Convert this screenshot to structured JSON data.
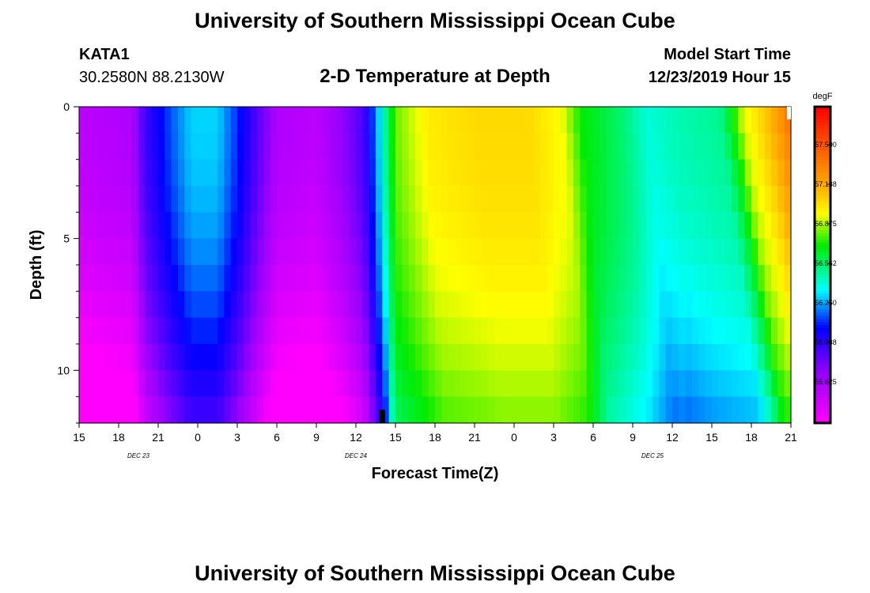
{
  "header": {
    "title": "University of Southern Mississippi Ocean Cube",
    "station": "KATA1",
    "coords": "30.2580N 88.2130W",
    "subtitle": "2-D Temperature at Depth",
    "model_label": "Model Start Time",
    "model_time": "12/23/2019 Hour 15"
  },
  "footer": {
    "title": "University of Southern Mississippi Ocean Cube"
  },
  "chart_data": {
    "type": "heatmap",
    "title": "2-D Temperature at Depth",
    "xlabel": "Forecast Time(Z)",
    "ylabel": "Depth (ft)",
    "x_hours_range": [
      0,
      54
    ],
    "x_tick_labels": [
      "15",
      "18",
      "21",
      "0",
      "3",
      "6",
      "9",
      "12",
      "15",
      "18",
      "21",
      "0",
      "3",
      "6",
      "9",
      "12",
      "15",
      "18",
      "21"
    ],
    "date_labels": [
      {
        "label": "DEC 23",
        "hour": 4.5
      },
      {
        "label": "DEC 24",
        "hour": 21
      },
      {
        "label": "DEC 25",
        "hour": 43.5
      }
    ],
    "y_ticks": [
      0,
      5,
      10
    ],
    "ylim": [
      0,
      12
    ],
    "minor_y_step": 1,
    "colorbar": {
      "unit": "degF",
      "min": 55.3,
      "max": 57.8,
      "labels": [
        "57.500",
        "57.188",
        "56.875",
        "56.562",
        "56.250",
        "55.938",
        "55.625"
      ]
    },
    "marker": {
      "hour": 23,
      "depth_from": 11.5,
      "depth_to": 12
    },
    "surface_anchor_hours": [
      0,
      4,
      5,
      7,
      8.5,
      10.5,
      12,
      15,
      18,
      20,
      21.6,
      22.5,
      24,
      26.5,
      30,
      34,
      36.5,
      38,
      41,
      43,
      45,
      48.5,
      49.5,
      50.2,
      52,
      54
    ],
    "surface_anchor_temps": [
      55.55,
      55.6,
      55.9,
      56.15,
      56.3,
      56.3,
      56.1,
      55.6,
      55.55,
      55.7,
      55.88,
      56.2,
      56.8,
      57.0,
      57.05,
      57.05,
      56.95,
      56.7,
      56.55,
      56.4,
      56.45,
      56.5,
      56.7,
      56.9,
      57.1,
      57.4
    ],
    "front_hour_surface": 26.5,
    "front_hour_bottom": 28.7,
    "warm_front_hour_surface": 48.8,
    "warm_front_hour_bottom": 52.0,
    "bottom_cooling_degF": 0.42
  }
}
